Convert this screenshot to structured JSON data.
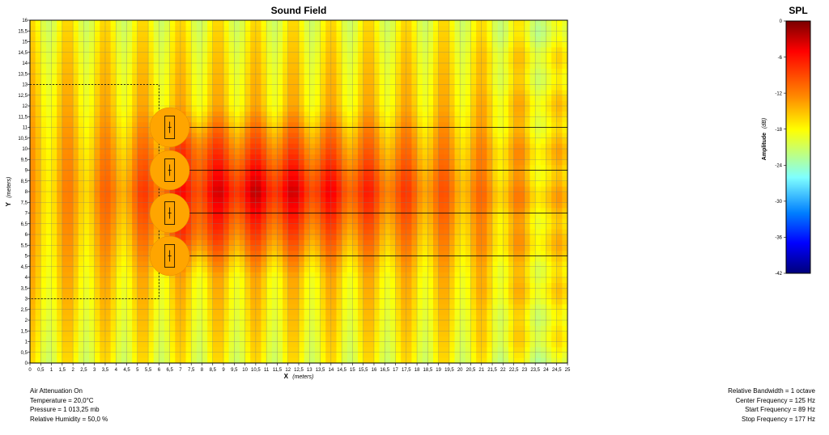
{
  "chart_data": [
    {
      "type": "heatmap",
      "title": "Sound Field",
      "xlabel": "X",
      "xlabel_unit": "(meters)",
      "ylabel": "Y",
      "ylabel_unit": "(meters)",
      "xlim": [
        0,
        25
      ],
      "ylim": [
        0,
        16
      ],
      "x_ticks": [
        "0",
        "0,5",
        "1",
        "1,5",
        "2",
        "2,5",
        "3",
        "3,5",
        "4",
        "4,5",
        "5",
        "5,5",
        "6",
        "6,5",
        "7",
        "7,5",
        "8",
        "8,5",
        "9",
        "9,5",
        "10",
        "10,5",
        "11",
        "11,5",
        "12",
        "12,5",
        "13",
        "13,5",
        "14",
        "14,5",
        "15",
        "15,5",
        "16",
        "16,5",
        "17",
        "17,5",
        "18",
        "18,5",
        "19",
        "19,5",
        "20",
        "20,5",
        "21",
        "21,5",
        "22",
        "22,5",
        "23",
        "23,5",
        "24",
        "24,5",
        "25"
      ],
      "y_ticks": [
        "0",
        "0,5",
        "1",
        "1,5",
        "2",
        "2,5",
        "3",
        "3,5",
        "4",
        "4,5",
        "5",
        "5,5",
        "6",
        "6,5",
        "7",
        "7,5",
        "8",
        "8,5",
        "9",
        "9,5",
        "10",
        "10,5",
        "11",
        "11,5",
        "12",
        "12,5",
        "13",
        "13,5",
        "14",
        "14,5",
        "15",
        "15,5",
        "16"
      ],
      "grid": true,
      "sources": [
        {
          "x": 6.5,
          "y": 11
        },
        {
          "x": 6.5,
          "y": 9
        },
        {
          "x": 6.5,
          "y": 7
        },
        {
          "x": 6.5,
          "y": 5
        }
      ],
      "beam_lines_y": [
        11,
        9,
        7,
        5
      ],
      "dashed_region": {
        "x": [
          0,
          6
        ],
        "y": [
          3,
          13
        ]
      }
    },
    {
      "type": "heatmap",
      "title": "SPL",
      "colorbar_label": "Amplitude",
      "colorbar_unit": "(dB)",
      "range": [
        -42,
        0
      ],
      "ticks": [
        "0",
        "-6",
        "-12",
        "-18",
        "-24",
        "-30",
        "-36",
        "-42"
      ],
      "colors": [
        "#7a0000",
        "#ff0000",
        "#ff8a00",
        "#ffff00",
        "#7fffff",
        "#007fff",
        "#0000ff",
        "#00007a"
      ]
    }
  ],
  "info_left": [
    "Air Attenuation On",
    "Temperature = 20,0°C",
    "Pressure = 1 013,25  mb",
    "Relative Humidity = 50,0 %"
  ],
  "info_right": [
    "Relative Bandwidth = 1 octave",
    "Center Frequency = 125 Hz",
    "Start Frequency = 89 Hz",
    "Stop Frequency = 177 Hz"
  ]
}
